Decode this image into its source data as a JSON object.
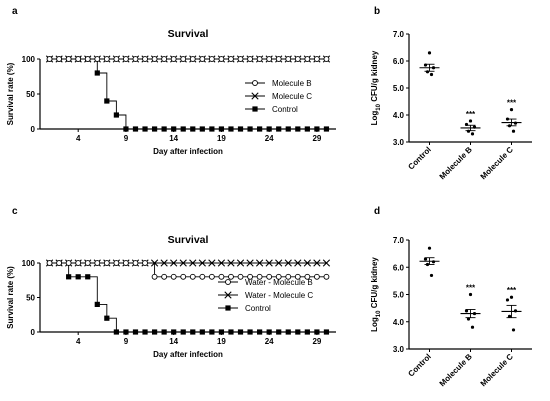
{
  "chart_data": [
    {
      "panel": "a",
      "type": "line",
      "title": "Survival",
      "xlabel": "Day after infection",
      "ylabel": "Survival rate (%)",
      "xticks": [
        4,
        9,
        14,
        19,
        24,
        29
      ],
      "yticks": [
        0,
        50,
        100
      ],
      "xlim": [
        0,
        31
      ],
      "ylim": [
        0,
        100
      ],
      "legend_position": "right",
      "series": [
        {
          "name": "Molecule B",
          "marker": "circle-open",
          "x": [
            1,
            2,
            3,
            4,
            5,
            6,
            7,
            8,
            9,
            10,
            11,
            12,
            13,
            14,
            15,
            16,
            17,
            18,
            19,
            20,
            21,
            22,
            23,
            24,
            25,
            26,
            27,
            28,
            29,
            30
          ],
          "y": [
            100,
            100,
            100,
            100,
            100,
            100,
            100,
            100,
            100,
            100,
            100,
            100,
            100,
            100,
            100,
            100,
            100,
            100,
            100,
            100,
            100,
            100,
            100,
            100,
            100,
            100,
            100,
            100,
            100,
            100
          ]
        },
        {
          "name": "Molecule C",
          "marker": "x",
          "x": [
            1,
            2,
            3,
            4,
            5,
            6,
            7,
            8,
            9,
            10,
            11,
            12,
            13,
            14,
            15,
            16,
            17,
            18,
            19,
            20,
            21,
            22,
            23,
            24,
            25,
            26,
            27,
            28,
            29,
            30
          ],
          "y": [
            100,
            100,
            100,
            100,
            100,
            100,
            100,
            100,
            100,
            100,
            100,
            100,
            100,
            100,
            100,
            100,
            100,
            100,
            100,
            100,
            100,
            100,
            100,
            100,
            100,
            100,
            100,
            100,
            100,
            100
          ]
        },
        {
          "name": "Control",
          "marker": "square",
          "x": [
            1,
            2,
            3,
            4,
            5,
            6,
            7,
            8,
            9,
            10,
            11,
            12,
            13,
            14,
            15,
            16,
            17,
            18,
            19,
            20,
            21,
            22,
            23,
            24,
            25,
            26,
            27,
            28,
            29,
            30
          ],
          "y": [
            100,
            100,
            100,
            100,
            100,
            80,
            40,
            20,
            0,
            0,
            0,
            0,
            0,
            0,
            0,
            0,
            0,
            0,
            0,
            0,
            0,
            0,
            0,
            0,
            0,
            0,
            0,
            0,
            0,
            0
          ]
        }
      ]
    },
    {
      "panel": "b",
      "type": "scatter",
      "ylabel": "Log10 CFU/g kidney",
      "ylabel_main": "Log",
      "ylabel_sub": "10",
      "ylabel_rest": " CFU/g kidney",
      "categories": [
        "Control",
        "Molecule B",
        "Molecule C"
      ],
      "ylim": [
        3.0,
        7.0
      ],
      "yticks": [
        "3.0",
        "4.0",
        "5.0",
        "6.0",
        "7.0"
      ],
      "groups": [
        {
          "category": "Control",
          "points": [
            6.3,
            5.85,
            5.75,
            5.6,
            5.5
          ],
          "mean": 5.75,
          "sem_low": 5.62,
          "sem_high": 5.88,
          "significance": ""
        },
        {
          "category": "Molecule B",
          "points": [
            3.78,
            3.65,
            3.55,
            3.4,
            3.3
          ],
          "mean": 3.52,
          "sem_low": 3.42,
          "sem_high": 3.62,
          "significance": "***"
        },
        {
          "category": "Molecule C",
          "points": [
            4.2,
            3.85,
            3.7,
            3.6,
            3.4
          ],
          "mean": 3.72,
          "sem_low": 3.6,
          "sem_high": 3.85,
          "significance": "***"
        }
      ]
    },
    {
      "panel": "c",
      "type": "line",
      "title": "Survival",
      "xlabel": "Day after infection",
      "ylabel": "Survival rate (%)",
      "xticks": [
        4,
        9,
        14,
        19,
        24,
        29
      ],
      "yticks": [
        0,
        50,
        100
      ],
      "xlim": [
        0,
        31
      ],
      "ylim": [
        0,
        100
      ],
      "legend_position": "right",
      "series": [
        {
          "name": "Water - Molecule B",
          "marker": "circle-open",
          "x": [
            1,
            2,
            3,
            4,
            5,
            6,
            7,
            8,
            9,
            10,
            11,
            12,
            13,
            14,
            15,
            16,
            17,
            18,
            19,
            20,
            21,
            22,
            23,
            24,
            25,
            26,
            27,
            28,
            29,
            30
          ],
          "y": [
            100,
            100,
            100,
            100,
            100,
            100,
            100,
            100,
            100,
            100,
            100,
            80,
            80,
            80,
            80,
            80,
            80,
            80,
            80,
            80,
            80,
            80,
            80,
            80,
            80,
            80,
            80,
            80,
            80,
            80
          ]
        },
        {
          "name": "Water - Molecule C",
          "marker": "x",
          "x": [
            1,
            2,
            3,
            4,
            5,
            6,
            7,
            8,
            9,
            10,
            11,
            12,
            13,
            14,
            15,
            16,
            17,
            18,
            19,
            20,
            21,
            22,
            23,
            24,
            25,
            26,
            27,
            28,
            29,
            30
          ],
          "y": [
            100,
            100,
            100,
            100,
            100,
            100,
            100,
            100,
            100,
            100,
            100,
            100,
            100,
            100,
            100,
            100,
            100,
            100,
            100,
            100,
            100,
            100,
            100,
            100,
            100,
            100,
            100,
            100,
            100,
            100
          ]
        },
        {
          "name": "Control",
          "marker": "square",
          "x": [
            1,
            2,
            3,
            4,
            5,
            6,
            7,
            8,
            9,
            10,
            11,
            12,
            13,
            14,
            15,
            16,
            17,
            18,
            19,
            20,
            21,
            22,
            23,
            24,
            25,
            26,
            27,
            28,
            29,
            30
          ],
          "y": [
            100,
            100,
            80,
            80,
            80,
            40,
            20,
            0,
            0,
            0,
            0,
            0,
            0,
            0,
            0,
            0,
            0,
            0,
            0,
            0,
            0,
            0,
            0,
            0,
            0,
            0,
            0,
            0,
            0,
            0
          ]
        }
      ]
    },
    {
      "panel": "d",
      "type": "scatter",
      "ylabel": "Log10 CFU/g kidney",
      "ylabel_main": "Log",
      "ylabel_sub": "10",
      "ylabel_rest": " CFU/g kidney",
      "categories": [
        "Control",
        "Molecule B",
        "Molecule C"
      ],
      "ylim": [
        3.0,
        7.0
      ],
      "yticks": [
        "3.0",
        "4.0",
        "5.0",
        "6.0",
        "7.0"
      ],
      "groups": [
        {
          "category": "Control",
          "points": [
            6.7,
            6.3,
            6.2,
            6.1,
            5.7
          ],
          "mean": 6.22,
          "sem_low": 6.1,
          "sem_high": 6.35,
          "significance": ""
        },
        {
          "category": "Molecule B",
          "points": [
            5.0,
            4.4,
            4.3,
            4.1,
            3.8
          ],
          "mean": 4.3,
          "sem_low": 4.15,
          "sem_high": 4.45,
          "significance": "***"
        },
        {
          "category": "Molecule C",
          "points": [
            4.9,
            4.8,
            4.4,
            4.2,
            3.7
          ],
          "mean": 4.38,
          "sem_low": 4.15,
          "sem_high": 4.6,
          "significance": "***"
        }
      ]
    }
  ]
}
